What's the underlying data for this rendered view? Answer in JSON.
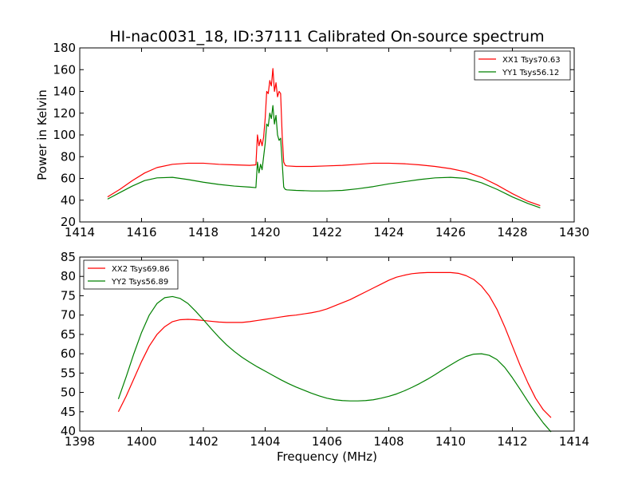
{
  "colors": {
    "red": "#ff0000",
    "green": "#008000"
  },
  "chart_data": [
    {
      "type": "line",
      "title": "HI-nac0031_18, ID:37111 Calibrated On-source spectrum",
      "xlabel": "",
      "ylabel": "Power in Kelvin",
      "xlim": [
        1414,
        1430
      ],
      "ylim": [
        20,
        180
      ],
      "xticks": [
        1414,
        1416,
        1418,
        1420,
        1422,
        1424,
        1426,
        1428,
        1430
      ],
      "yticks": [
        20,
        40,
        60,
        80,
        100,
        120,
        140,
        160,
        180
      ],
      "grid": false,
      "legend_position": "top-right",
      "series": [
        {
          "name": "XX1 Tsys70.63",
          "color": "#ff0000",
          "x": [
            1414.9,
            1415.3,
            1415.7,
            1416.1,
            1416.5,
            1417.0,
            1417.5,
            1418.0,
            1418.5,
            1419.0,
            1419.5,
            1419.7,
            1419.75,
            1419.8,
            1419.85,
            1419.9,
            1419.95,
            1420.0,
            1420.05,
            1420.1,
            1420.15,
            1420.2,
            1420.25,
            1420.3,
            1420.35,
            1420.4,
            1420.45,
            1420.5,
            1420.55,
            1420.6,
            1420.65,
            1420.7,
            1421.0,
            1421.5,
            1422.0,
            1422.5,
            1423.0,
            1423.5,
            1424.0,
            1424.5,
            1425.0,
            1425.5,
            1426.0,
            1426.5,
            1427.0,
            1427.5,
            1428.0,
            1428.5,
            1428.9
          ],
          "y": [
            43,
            50,
            58,
            65,
            70,
            73,
            74,
            74,
            73,
            72.5,
            72,
            72.5,
            100,
            90,
            96,
            90,
            98,
            115,
            140,
            138,
            150,
            145,
            161,
            140,
            148,
            135,
            140,
            138,
            100,
            75,
            72,
            71.5,
            71,
            71,
            71.5,
            72,
            73,
            74,
            74,
            73.5,
            72.5,
            71,
            69,
            66,
            61,
            54,
            46,
            39,
            35
          ]
        },
        {
          "name": "YY1 Tsys56.12",
          "color": "#008000",
          "x": [
            1414.9,
            1415.3,
            1415.7,
            1416.1,
            1416.5,
            1417.0,
            1417.5,
            1418.0,
            1418.5,
            1419.0,
            1419.5,
            1419.7,
            1419.75,
            1419.8,
            1419.85,
            1419.9,
            1419.95,
            1420.0,
            1420.05,
            1420.1,
            1420.15,
            1420.2,
            1420.25,
            1420.3,
            1420.35,
            1420.4,
            1420.45,
            1420.5,
            1420.55,
            1420.6,
            1420.65,
            1420.7,
            1421.0,
            1421.5,
            1422.0,
            1422.5,
            1423.0,
            1423.5,
            1424.0,
            1424.5,
            1425.0,
            1425.5,
            1426.0,
            1426.5,
            1427.0,
            1427.5,
            1428.0,
            1428.5,
            1428.9
          ],
          "y": [
            41,
            47,
            53,
            58,
            60.5,
            61,
            59,
            56.5,
            54.5,
            53,
            52,
            51.5,
            75,
            65,
            73,
            68,
            80,
            92,
            110,
            108,
            120,
            115,
            127,
            110,
            118,
            100,
            95,
            97,
            75,
            52,
            50,
            49.5,
            49,
            48.5,
            48.5,
            49,
            50.5,
            52.5,
            55,
            57,
            59,
            60.5,
            61,
            60,
            56,
            50,
            43,
            37,
            33
          ]
        }
      ]
    },
    {
      "type": "line",
      "title": "",
      "xlabel": "Frequency (MHz)",
      "ylabel": "",
      "xlim": [
        1398,
        1414
      ],
      "ylim": [
        40,
        85
      ],
      "xticks": [
        1398,
        1400,
        1402,
        1404,
        1406,
        1408,
        1410,
        1412,
        1414
      ],
      "yticks": [
        40,
        45,
        50,
        55,
        60,
        65,
        70,
        75,
        80,
        85
      ],
      "grid": false,
      "legend_position": "top-left",
      "series": [
        {
          "name": "XX2 Tsys69.86",
          "color": "#ff0000",
          "x": [
            1399.25,
            1399.5,
            1399.75,
            1400.0,
            1400.25,
            1400.5,
            1400.75,
            1401.0,
            1401.25,
            1401.5,
            1401.75,
            1402.0,
            1402.25,
            1402.5,
            1402.75,
            1403.0,
            1403.25,
            1403.5,
            1403.75,
            1404.0,
            1404.25,
            1404.5,
            1404.75,
            1405.0,
            1405.25,
            1405.5,
            1405.75,
            1406.0,
            1406.25,
            1406.5,
            1406.75,
            1407.0,
            1407.25,
            1407.5,
            1407.75,
            1408.0,
            1408.25,
            1408.5,
            1408.75,
            1409.0,
            1409.25,
            1409.5,
            1409.75,
            1410.0,
            1410.25,
            1410.5,
            1410.75,
            1411.0,
            1411.25,
            1411.5,
            1411.75,
            1412.0,
            1412.25,
            1412.5,
            1412.75,
            1413.0,
            1413.25
          ],
          "y": [
            45,
            49,
            53.5,
            58,
            62,
            65,
            67,
            68.3,
            68.8,
            68.9,
            68.8,
            68.6,
            68.4,
            68.2,
            68.1,
            68.1,
            68.1,
            68.3,
            68.6,
            68.9,
            69.2,
            69.5,
            69.8,
            70.0,
            70.3,
            70.6,
            71.0,
            71.6,
            72.4,
            73.2,
            74.0,
            75.0,
            76.0,
            77.0,
            78.0,
            79.0,
            79.8,
            80.3,
            80.7,
            80.9,
            81.0,
            81.0,
            81.0,
            81.0,
            80.8,
            80.2,
            79.2,
            77.5,
            75.0,
            71.5,
            67.0,
            62.0,
            57.0,
            52.5,
            48.5,
            45.5,
            43.5
          ]
        },
        {
          "name": "YY2 Tsys56.89",
          "color": "#008000",
          "x": [
            1399.25,
            1399.5,
            1399.75,
            1400.0,
            1400.25,
            1400.5,
            1400.75,
            1401.0,
            1401.25,
            1401.5,
            1401.75,
            1402.0,
            1402.25,
            1402.5,
            1402.75,
            1403.0,
            1403.25,
            1403.5,
            1403.75,
            1404.0,
            1404.25,
            1404.5,
            1404.75,
            1405.0,
            1405.25,
            1405.5,
            1405.75,
            1406.0,
            1406.25,
            1406.5,
            1406.75,
            1407.0,
            1407.25,
            1407.5,
            1407.75,
            1408.0,
            1408.25,
            1408.5,
            1408.75,
            1409.0,
            1409.25,
            1409.5,
            1409.75,
            1410.0,
            1410.25,
            1410.5,
            1410.75,
            1411.0,
            1411.25,
            1411.5,
            1411.75,
            1412.0,
            1412.25,
            1412.5,
            1412.75,
            1413.0,
            1413.25
          ],
          "y": [
            48.3,
            54,
            60,
            65.5,
            70,
            73,
            74.5,
            74.8,
            74.3,
            73.0,
            71.0,
            68.8,
            66.5,
            64.3,
            62.3,
            60.6,
            59.1,
            57.8,
            56.6,
            55.5,
            54.4,
            53.3,
            52.3,
            51.4,
            50.6,
            49.8,
            49.1,
            48.5,
            48.1,
            47.9,
            47.8,
            47.8,
            47.9,
            48.1,
            48.5,
            49.0,
            49.6,
            50.4,
            51.3,
            52.3,
            53.4,
            54.6,
            55.9,
            57.1,
            58.3,
            59.3,
            59.9,
            60.0,
            59.6,
            58.5,
            56.5,
            53.8,
            50.8,
            47.7,
            44.8,
            42.1,
            39.8
          ]
        }
      ]
    }
  ]
}
